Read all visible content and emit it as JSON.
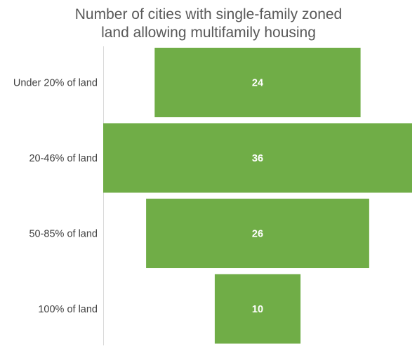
{
  "chart_data": {
    "type": "bar",
    "orientation": "horizontal",
    "layout": "funnel (bars centered)",
    "title_lines": [
      "Number of cities with single-family zoned",
      "land allowing multifamily housing"
    ],
    "categories": [
      "Under 20% of land",
      "20-46% of land",
      "50-85% of land",
      "100% of land"
    ],
    "values": [
      24,
      36,
      26,
      10
    ],
    "data_labels": [
      "24",
      "36",
      "26",
      "10"
    ],
    "bar_color": "#70AD47",
    "value_label_color": "#FFFFFF",
    "axis_line_color": "#D9D9D9",
    "legend": "none",
    "grid": false
  }
}
